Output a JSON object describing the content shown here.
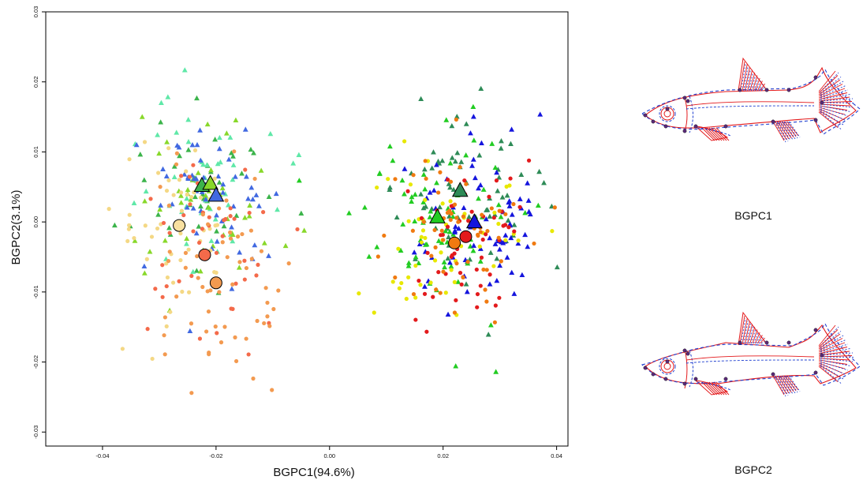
{
  "chart_data": {
    "type": "scatter",
    "xlabel": "BGPC1(94.6%)",
    "ylabel": "BGPC2(3.1%)",
    "xlim": [
      -0.05,
      0.042
    ],
    "ylim": [
      -0.032,
      0.03
    ],
    "xticks": [
      "-0.04",
      "-0.02",
      "0.00",
      "0.02",
      "0.04"
    ],
    "yticks": [
      "0.03",
      "0.02",
      "0.01",
      "0.00",
      "-0.01",
      "-0.02",
      "-0.03"
    ],
    "grid": false,
    "legend": "none",
    "groups": [
      {
        "shape": "triangle",
        "color": "#3CB44B",
        "cluster": "left",
        "center": [
          -0.022,
          0.005
        ],
        "sd": [
          0.006,
          0.006
        ],
        "n": 40
      },
      {
        "shape": "triangle",
        "color": "#5FE8A8",
        "cluster": "left",
        "center": [
          -0.023,
          0.006
        ],
        "sd": [
          0.007,
          0.007
        ],
        "n": 45
      },
      {
        "shape": "triangle",
        "color": "#88D82A",
        "cluster": "left",
        "center": [
          -0.021,
          0.004
        ],
        "sd": [
          0.006,
          0.006
        ],
        "n": 45
      },
      {
        "shape": "triangle",
        "color": "#4169E1",
        "cluster": "left",
        "center": [
          -0.021,
          0.003
        ],
        "sd": [
          0.006,
          0.006
        ],
        "n": 55
      },
      {
        "shape": "circle",
        "color": "#F4D885",
        "cluster": "left",
        "center": [
          -0.027,
          -0.001
        ],
        "sd": [
          0.005,
          0.006
        ],
        "n": 50
      },
      {
        "shape": "circle",
        "color": "#F46A4A",
        "cluster": "left",
        "center": [
          -0.022,
          -0.004
        ],
        "sd": [
          0.006,
          0.007
        ],
        "n": 45
      },
      {
        "shape": "circle",
        "color": "#F39A50",
        "cluster": "left",
        "center": [
          -0.02,
          -0.009
        ],
        "sd": [
          0.006,
          0.008
        ],
        "n": 60
      },
      {
        "shape": "triangle",
        "color": "#2E8B57",
        "cluster": "right",
        "center": [
          0.023,
          0.004
        ],
        "sd": [
          0.007,
          0.006
        ],
        "n": 70
      },
      {
        "shape": "triangle",
        "color": "#22CC22",
        "cluster": "right",
        "center": [
          0.019,
          0.001
        ],
        "sd": [
          0.007,
          0.007
        ],
        "n": 70
      },
      {
        "shape": "triangle",
        "color": "#1515DD",
        "cluster": "right",
        "center": [
          0.026,
          0.0
        ],
        "sd": [
          0.006,
          0.006
        ],
        "n": 75
      },
      {
        "shape": "circle",
        "color": "#E8E800",
        "cluster": "right",
        "center": [
          0.02,
          -0.001
        ],
        "sd": [
          0.006,
          0.006
        ],
        "n": 55
      },
      {
        "shape": "circle",
        "color": "#E31A1C",
        "cluster": "right",
        "center": [
          0.024,
          -0.002
        ],
        "sd": [
          0.006,
          0.006
        ],
        "n": 55
      },
      {
        "shape": "circle",
        "color": "#F07A10",
        "cluster": "right",
        "center": [
          0.022,
          -0.003
        ],
        "sd": [
          0.006,
          0.006
        ],
        "n": 60
      }
    ],
    "centroids": [
      {
        "shape": "triangle",
        "color": "#3CB44B",
        "x": -0.0225,
        "y": 0.0052
      },
      {
        "shape": "triangle",
        "color": "#88D82A",
        "x": -0.021,
        "y": 0.0055
      },
      {
        "shape": "triangle",
        "color": "#4169E1",
        "x": -0.02,
        "y": 0.0038
      },
      {
        "shape": "circle",
        "color": "#F8E0A0",
        "x": -0.0265,
        "y": -0.0005
      },
      {
        "shape": "circle",
        "color": "#F46A4A",
        "x": -0.022,
        "y": -0.0047
      },
      {
        "shape": "circle",
        "color": "#F39A50",
        "x": -0.02,
        "y": -0.0087
      },
      {
        "shape": "triangle",
        "color": "#2E8B57",
        "x": 0.023,
        "y": 0.0045
      },
      {
        "shape": "triangle",
        "color": "#22CC22",
        "x": 0.019,
        "y": 0.0007
      },
      {
        "shape": "triangle",
        "color": "#1515DD",
        "x": 0.0255,
        "y": 0.0
      },
      {
        "shape": "circle",
        "color": "#F07A10",
        "x": 0.022,
        "y": -0.003
      },
      {
        "shape": "circle",
        "color": "#E31A1C",
        "x": 0.024,
        "y": -0.0021
      }
    ]
  },
  "figures": [
    {
      "label": "BGPC1"
    },
    {
      "label": "BGPC2"
    }
  ],
  "colors": {
    "shape_line": "#E31A1C",
    "deformed_line": "#1F3FD0",
    "landmark": "#5A2A7A"
  }
}
